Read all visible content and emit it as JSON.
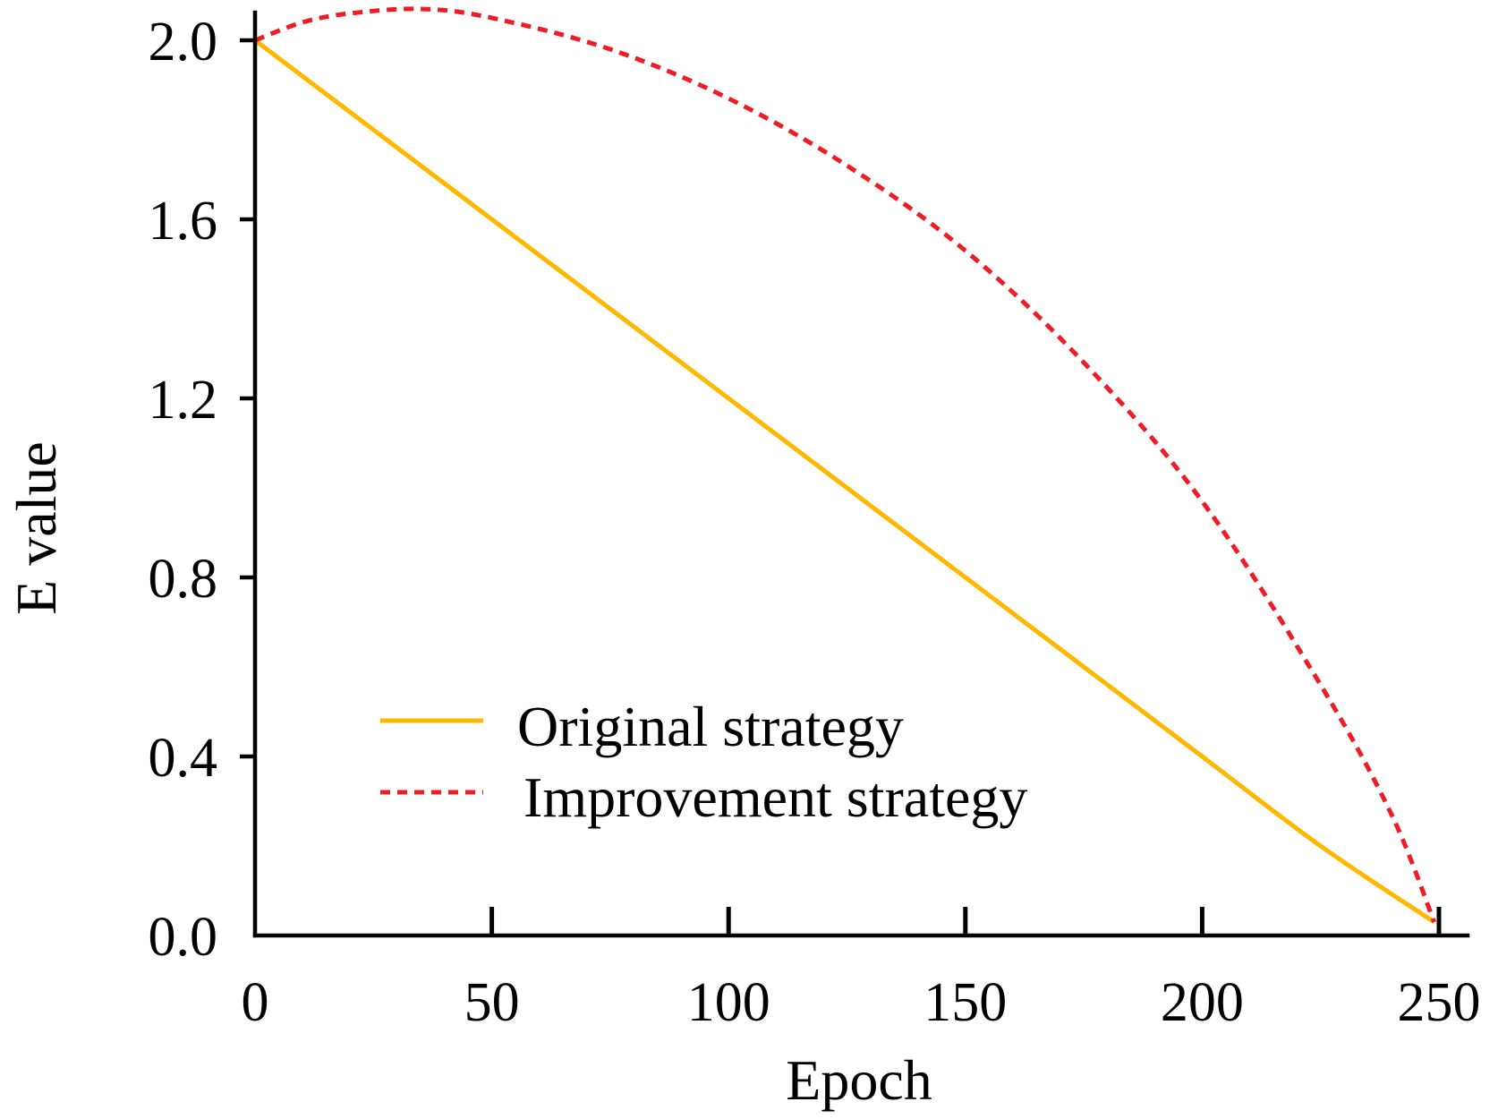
{
  "chart_data": {
    "type": "line",
    "title": "",
    "xlabel": "Epoch",
    "ylabel": "E value",
    "xlim": [
      0,
      250
    ],
    "ylim": [
      0,
      2.0
    ],
    "xticks": [
      0,
      50,
      100,
      150,
      200,
      250
    ],
    "xtick_labels": [
      "0",
      "50",
      "100",
      "150",
      "200",
      "250"
    ],
    "yticks": [
      0,
      0.4,
      0.8,
      1.2,
      1.6,
      2.0
    ],
    "ytick_labels": [
      "0.0",
      "0.4",
      "0.8",
      "1.2",
      "1.6",
      "2.0"
    ],
    "grid": false,
    "legend_position": "lower-left",
    "series": [
      {
        "name": "Original strategy",
        "color": "#FFB800",
        "style": "solid",
        "x": [
          0,
          25,
          50,
          75,
          100,
          125,
          150,
          175,
          200,
          225,
          249
        ],
        "y": [
          2.0,
          1.8,
          1.6,
          1.4,
          1.2,
          1.0,
          0.8,
          0.6,
          0.4,
          0.2,
          0.03
        ]
      },
      {
        "name": "Improvement strategy",
        "color": "#EE1C25",
        "style": "dashed",
        "x": [
          0,
          10,
          20,
          35,
          50,
          75,
          100,
          125,
          150,
          175,
          200,
          225,
          240,
          249
        ],
        "y": [
          2.0,
          2.04,
          2.06,
          2.07,
          2.05,
          1.98,
          1.87,
          1.72,
          1.53,
          1.28,
          0.97,
          0.56,
          0.27,
          0.03
        ]
      }
    ]
  }
}
